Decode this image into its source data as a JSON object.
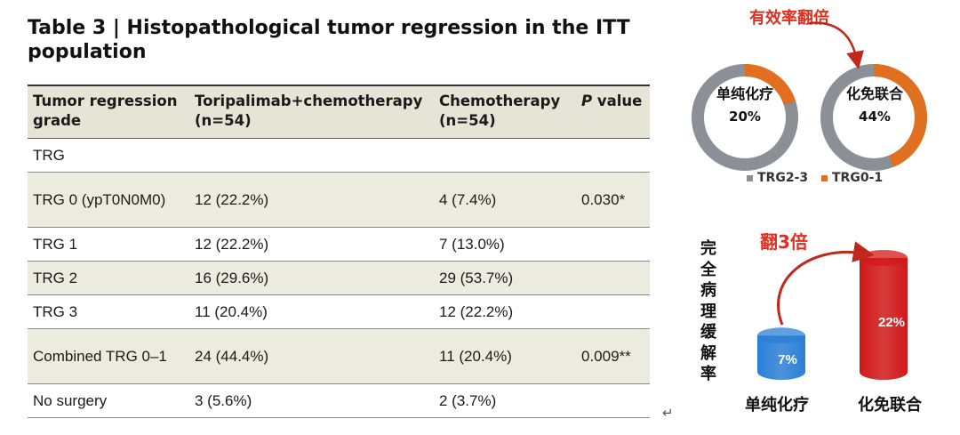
{
  "title": "Table 3 | Histopathological tumor regression in the ITT population",
  "table": {
    "headers": [
      {
        "line1": "Tumor regression",
        "line2": "grade"
      },
      {
        "line1": "Toripalimab+chemotherapy",
        "line2": "(n=54)"
      },
      {
        "line1": "Chemotherapy",
        "line2": "(n=54)"
      },
      {
        "line1": "value",
        "prefix": "P"
      }
    ],
    "rows": [
      {
        "label": "TRG",
        "c1": "",
        "c2": "",
        "p": ""
      },
      {
        "label": "TRG 0 (ypT0N0M0)",
        "c1": "12 (22.2%)",
        "c2": "4 (7.4%)",
        "p": "0.030*"
      },
      {
        "label": "TRG 1",
        "c1": "12 (22.2%)",
        "c2": "7 (13.0%)",
        "p": ""
      },
      {
        "label": "TRG 2",
        "c1": "16 (29.6%)",
        "c2": "29 (53.7%)",
        "p": ""
      },
      {
        "label": "TRG 3",
        "c1": "11 (20.4%)",
        "c2": "12 (22.2%)",
        "p": ""
      },
      {
        "label": "Combined TRG 0–1",
        "c1": "24 (44.4%)",
        "c2": "11 (20.4%)",
        "p": "0.009**"
      },
      {
        "label": "No surgery",
        "c1": "3 (5.6%)",
        "c2": "2 (3.7%)",
        "p": ""
      }
    ]
  },
  "return_mark": "↵",
  "donut_chart": {
    "heading": "有效率翻倍",
    "colors": {
      "trg23": "#8b9096",
      "trg01": "#e07020",
      "arrow": "#c0281c"
    },
    "donuts": [
      {
        "name": "单纯化疗",
        "value_text": "20%",
        "value": 20
      },
      {
        "name": "化免联合",
        "value_text": "44%",
        "value": 44
      }
    ],
    "legend": [
      {
        "label": "TRG2-3",
        "color": "#8b9096"
      },
      {
        "label": "TRG0-1",
        "color": "#e07020"
      }
    ]
  },
  "cylinder_chart": {
    "heading": "翻3倍",
    "ylabel": "完全病理缓解率",
    "bars": [
      {
        "name": "单纯化疗",
        "value_text": "7%",
        "value": 7,
        "color": "#2b7fd6"
      },
      {
        "name": "化免联合",
        "value_text": "22%",
        "value": 22,
        "color": "#d01818"
      }
    ]
  }
}
